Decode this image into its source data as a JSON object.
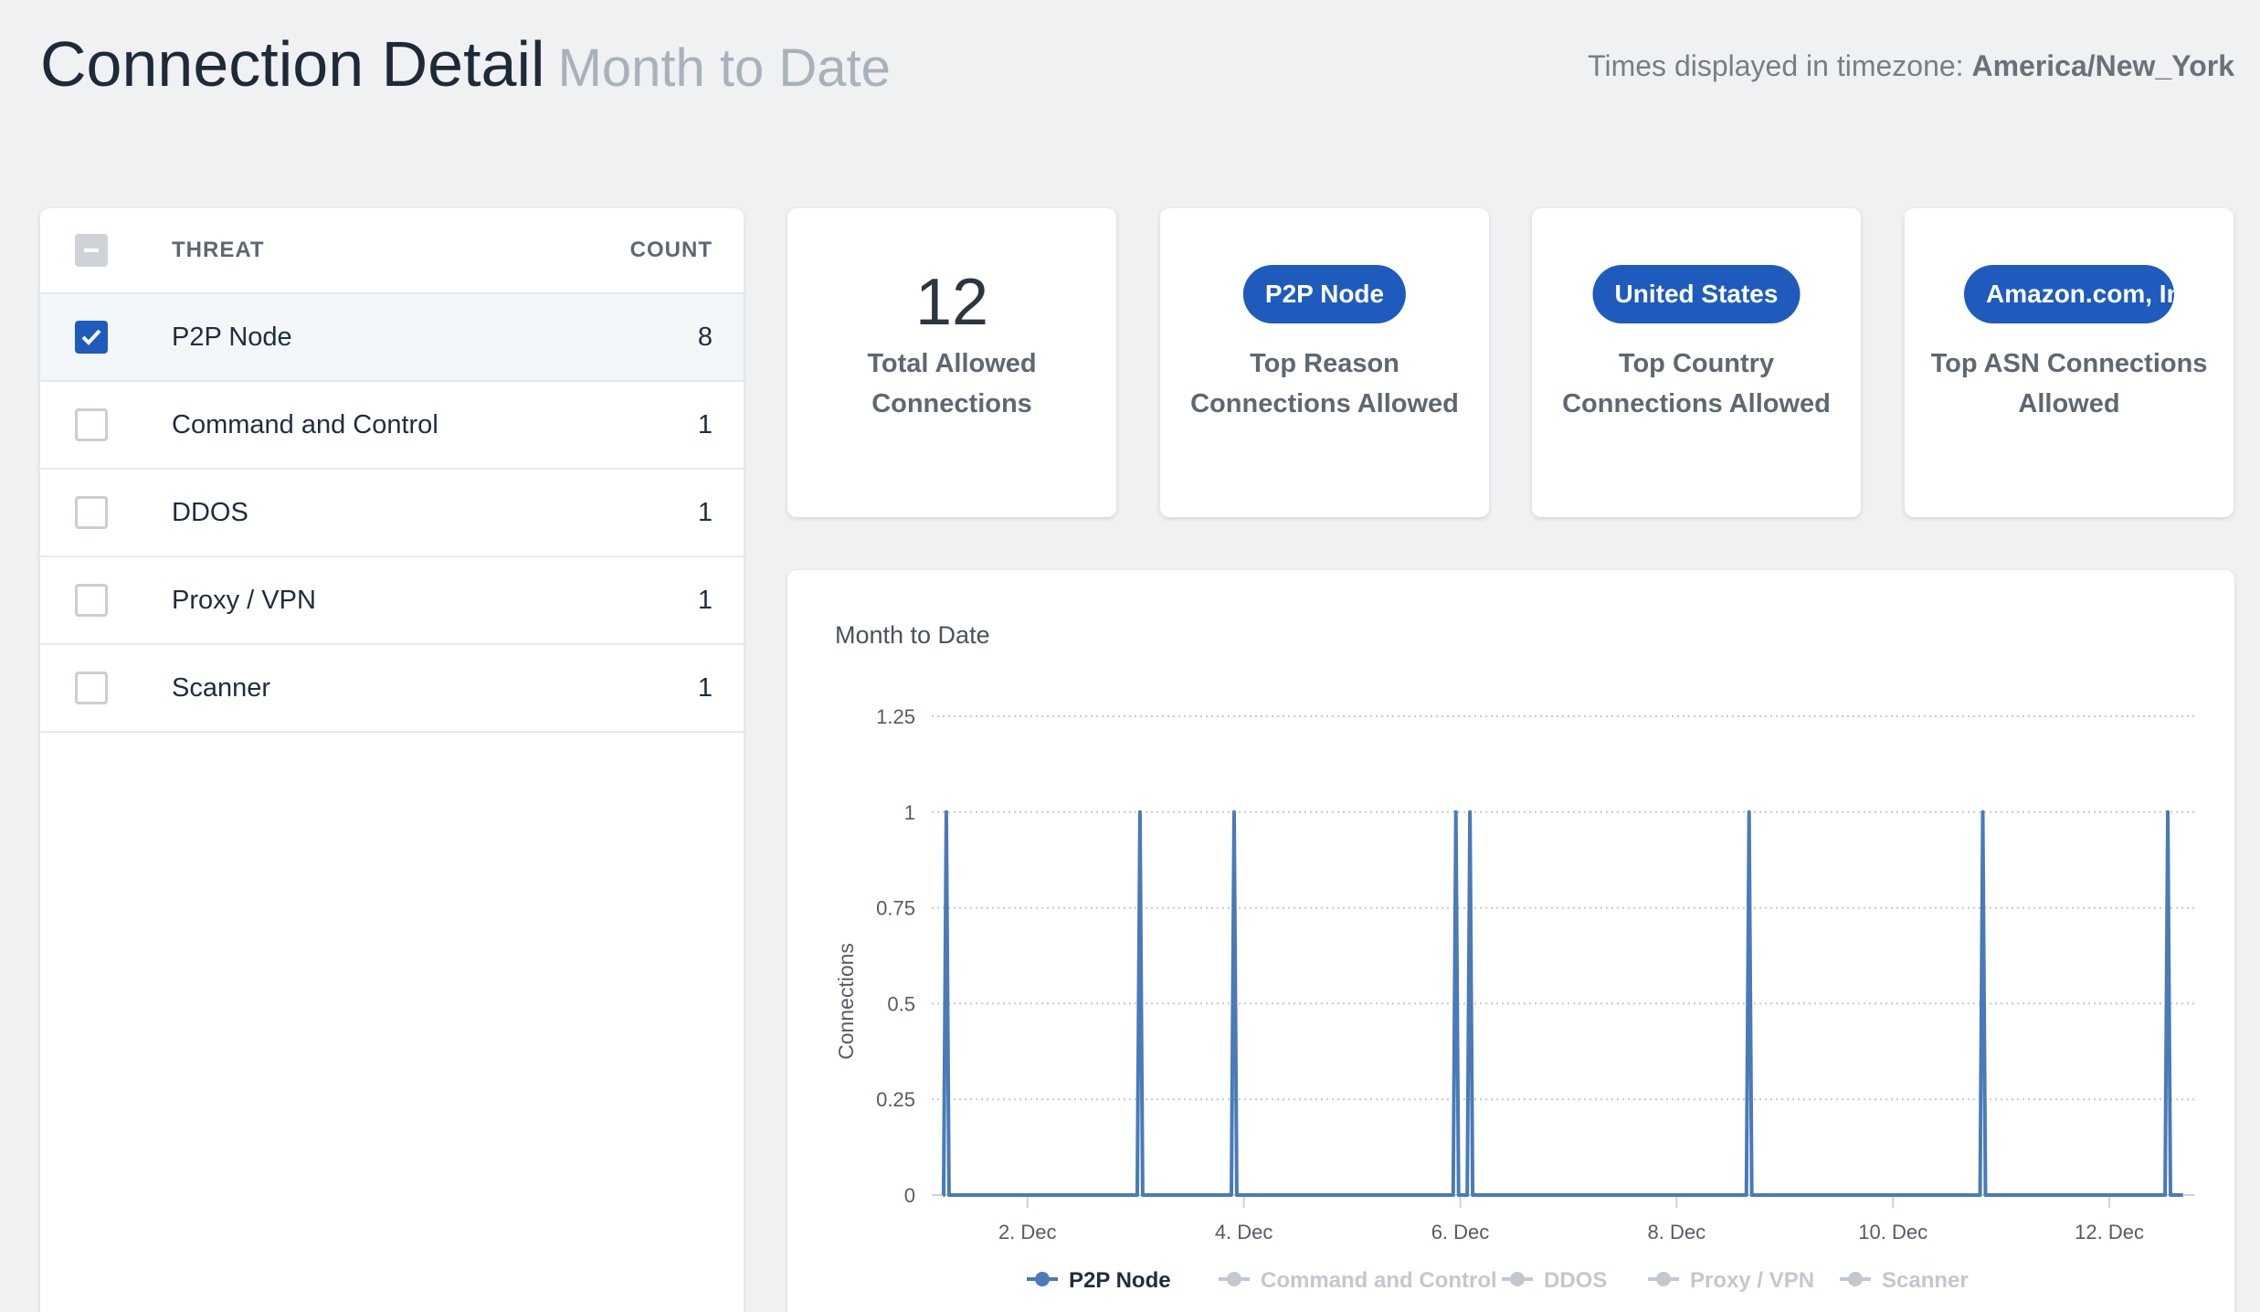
{
  "header": {
    "title": "Connection Detail",
    "subtitle": "Month to Date",
    "tz_prefix": "Times displayed in timezone: ",
    "tz_value": "America/New_York"
  },
  "threats": {
    "col_threat": "THREAT",
    "col_count": "COUNT",
    "rows": [
      {
        "name": "P2P Node",
        "count": "8",
        "checked": true
      },
      {
        "name": "Command and Control",
        "count": "1",
        "checked": false
      },
      {
        "name": "DDOS",
        "count": "1",
        "checked": false
      },
      {
        "name": "Proxy / VPN",
        "count": "1",
        "checked": false
      },
      {
        "name": "Scanner",
        "count": "1",
        "checked": false
      }
    ]
  },
  "stats": {
    "total": {
      "value": "12",
      "label": "Total Allowed Connections"
    },
    "reason": {
      "pill": "P2P Node",
      "label": "Top Reason Connections Allowed"
    },
    "country": {
      "pill": "United States",
      "label": "Top Country Connections Allowed"
    },
    "asn": {
      "pill": "Amazon.com, Inc.",
      "label": "Top ASN Connections Allowed"
    }
  },
  "colors": {
    "accent": "#1e5bbd",
    "series": "#4a7ab8",
    "legend_off": "#c3c8ce"
  },
  "chart_data": {
    "type": "line",
    "title": "Month to Date",
    "ylabel": "Connections",
    "xlabel": "",
    "ylim": [
      0,
      1.25
    ],
    "xlim": [
      1.2,
      12.7
    ],
    "yticks": [
      0,
      0.25,
      0.5,
      0.75,
      1,
      1.25
    ],
    "ytick_labels": [
      "0",
      "0.25",
      "0.5",
      "0.75",
      "1",
      "1.25"
    ],
    "xticks": [
      2,
      4,
      6,
      8,
      10,
      12
    ],
    "xtick_labels": [
      "2. Dec",
      "4. Dec",
      "6. Dec",
      "8. Dec",
      "10. Dec",
      "12. Dec"
    ],
    "series": [
      {
        "name": "P2P Node",
        "active": true,
        "spikes": [
          1.25,
          3.04,
          3.91,
          5.96,
          6.09,
          8.67,
          10.83,
          12.54
        ]
      },
      {
        "name": "Command and Control",
        "active": false
      },
      {
        "name": "DDOS",
        "active": false
      },
      {
        "name": "Proxy / VPN",
        "active": false
      },
      {
        "name": "Scanner",
        "active": false
      }
    ]
  }
}
